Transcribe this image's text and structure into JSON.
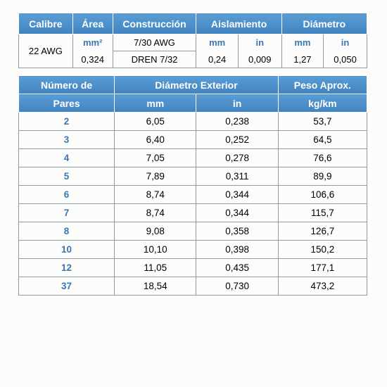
{
  "table1": {
    "headers": {
      "calibre": "Calibre",
      "area": "Área",
      "construccion": "Construcción",
      "aislamiento": "Aislamiento",
      "diametro": "Diámetro"
    },
    "units": {
      "mm2": "mm²",
      "mm": "mm",
      "in": "in"
    },
    "row": {
      "calibre": "22 AWG",
      "area": "0,324",
      "constr1": "7/30 AWG",
      "constr2": "DREN 7/32",
      "ais_mm": "0,24",
      "ais_in": "0,009",
      "dia_mm": "1,27",
      "dia_in": "0,050"
    }
  },
  "table2": {
    "headers": {
      "pares1": "Número de",
      "pares2": "Pares",
      "diam_ext": "Diámetro Exterior",
      "mm": "mm",
      "in": "in",
      "peso1": "Peso Aprox.",
      "peso2": "kg/km"
    },
    "rows": [
      {
        "p": "2",
        "mm": "6,05",
        "in": "0,238",
        "kg": "53,7"
      },
      {
        "p": "3",
        "mm": "6,40",
        "in": "0,252",
        "kg": "64,5"
      },
      {
        "p": "4",
        "mm": "7,05",
        "in": "0,278",
        "kg": "76,6"
      },
      {
        "p": "5",
        "mm": "7,89",
        "in": "0,311",
        "kg": "89,9"
      },
      {
        "p": "6",
        "mm": "8,74",
        "in": "0,344",
        "kg": "106,6"
      },
      {
        "p": "7",
        "mm": "8,74",
        "in": "0,344",
        "kg": "115,7"
      },
      {
        "p": "8",
        "mm": "9,08",
        "in": "0,358",
        "kg": "126,7"
      },
      {
        "p": "10",
        "mm": "10,10",
        "in": "0,398",
        "kg": "150,2"
      },
      {
        "p": "12",
        "mm": "11,05",
        "in": "0,435",
        "kg": "177,1"
      },
      {
        "p": "37",
        "mm": "18,54",
        "in": "0,730",
        "kg": "473,2"
      }
    ]
  }
}
